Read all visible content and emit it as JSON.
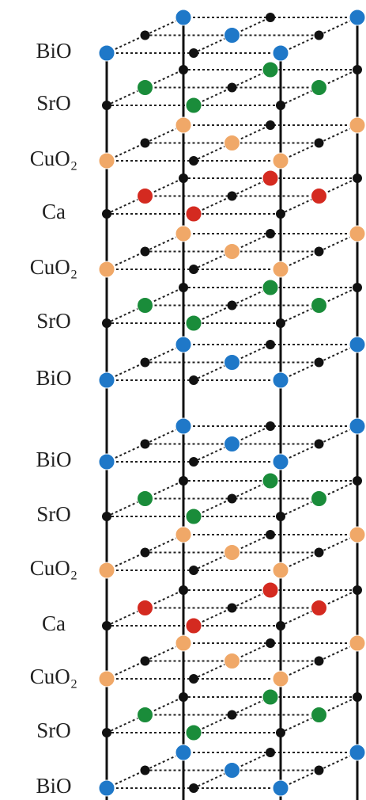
{
  "layers": [
    "BiO",
    "SrO",
    "CuO₂",
    "Ca",
    "CuO₂",
    "SrO",
    "BiO",
    "BiO",
    "SrO",
    "CuO₂",
    "Ca",
    "CuO₂",
    "SrO",
    "BiO"
  ]
}
